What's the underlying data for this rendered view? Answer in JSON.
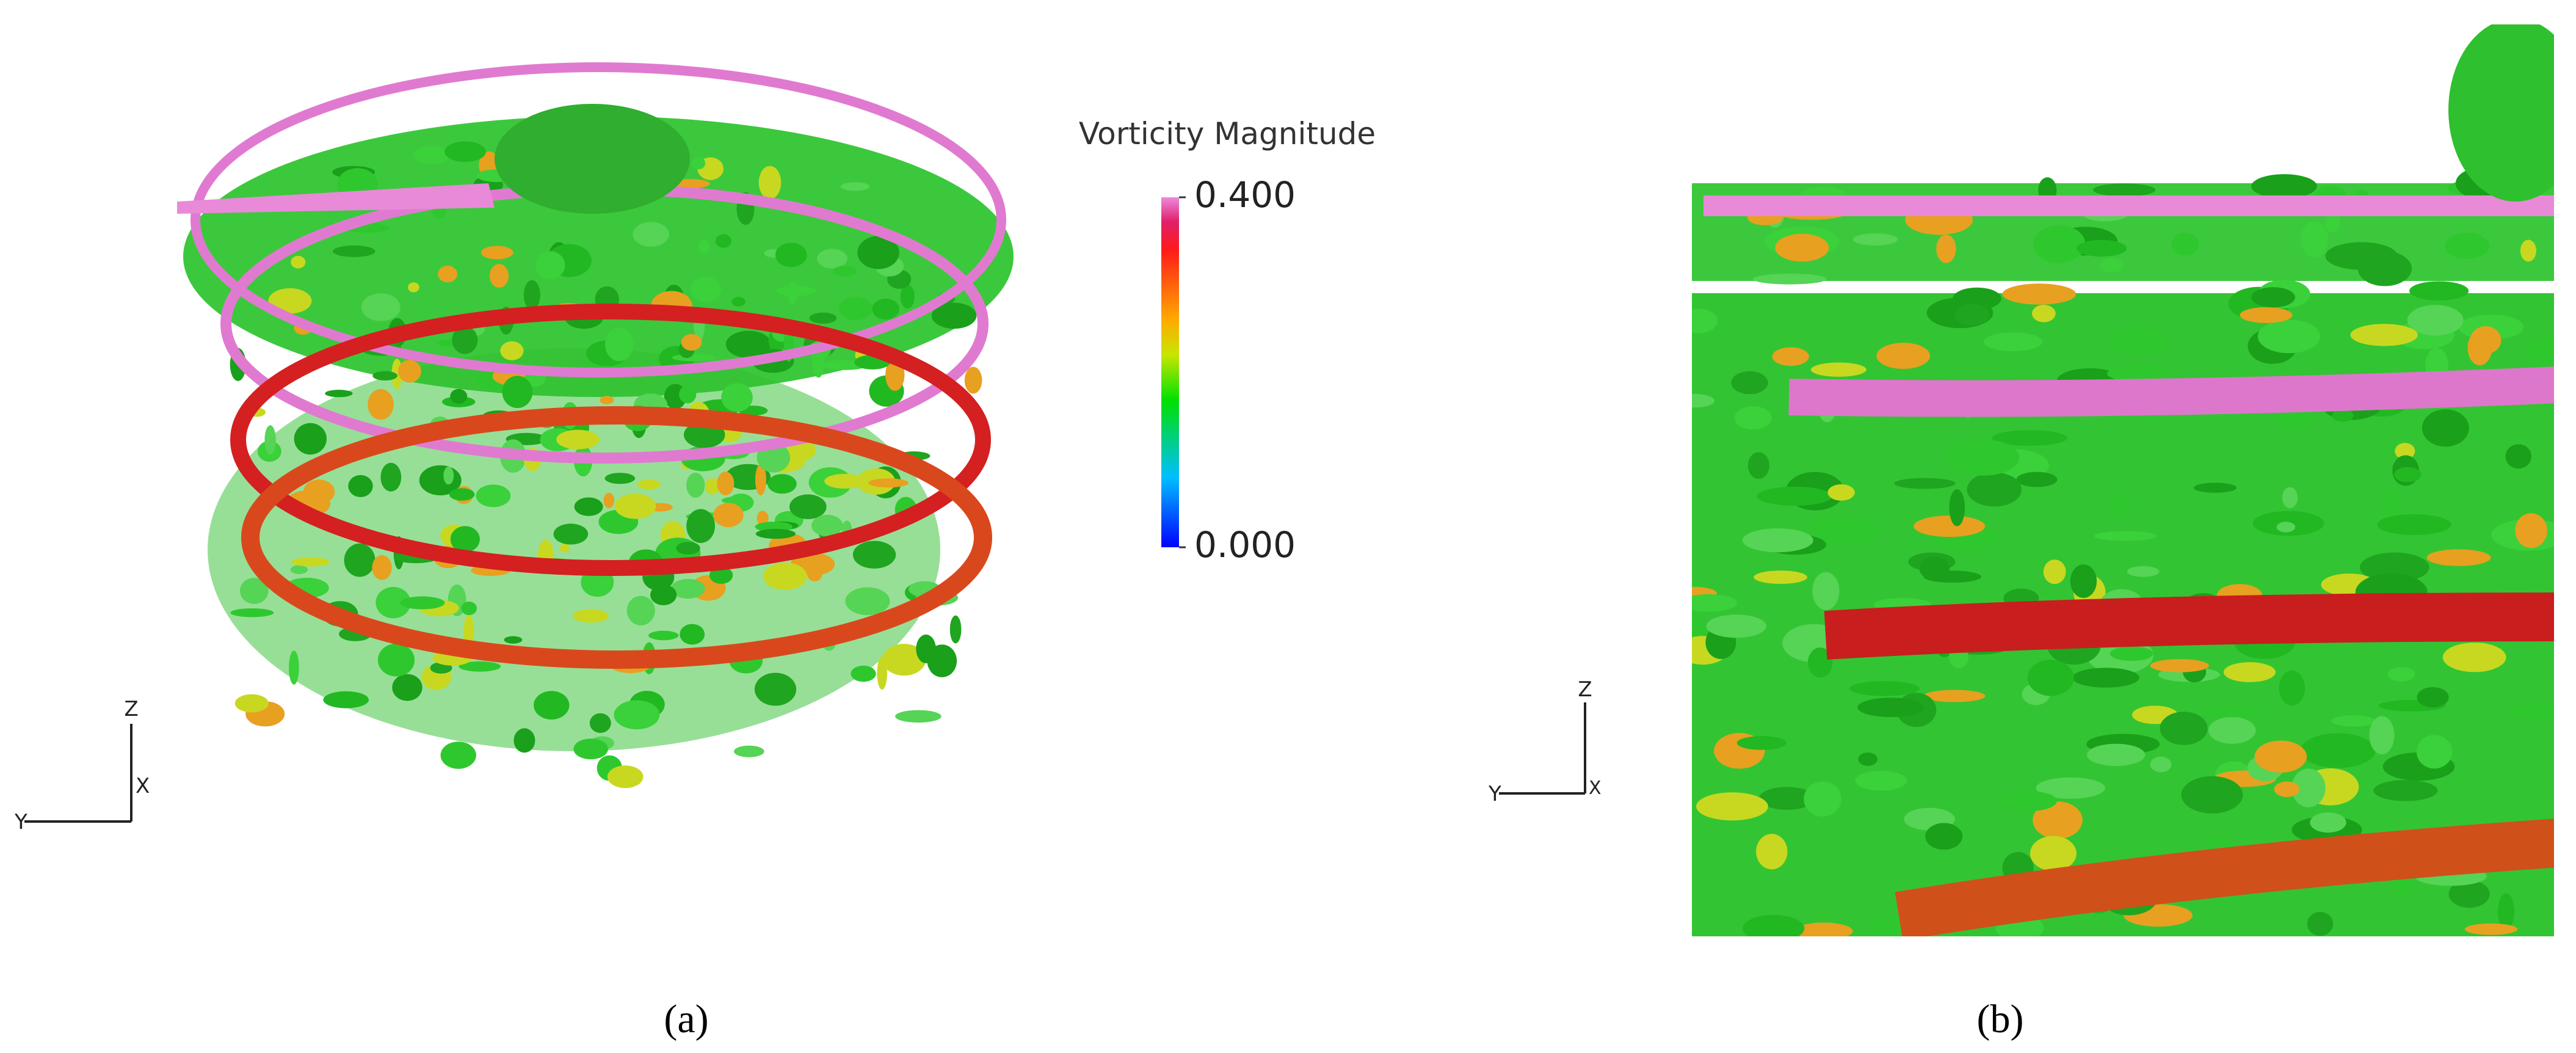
{
  "colorbar": {
    "title": "Vorticity Magnitude",
    "ticks": [
      {
        "value": 0.4,
        "label": "0.400"
      },
      {
        "value": 0,
        "label": "0.000"
      }
    ]
  },
  "panels": [
    {
      "label": "(a)",
      "axes": {
        "z": "Z",
        "x": "X",
        "y": "Y"
      }
    },
    {
      "label": "(b)",
      "axes": {
        "z": "Z",
        "x": "X",
        "y": "Y"
      }
    }
  ]
}
